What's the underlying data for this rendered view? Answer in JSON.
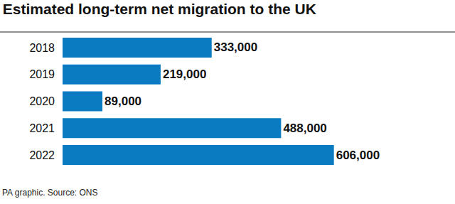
{
  "chart_data": {
    "type": "bar",
    "orientation": "horizontal",
    "title": "Estimated long-term net migration to the UK",
    "annotations": [
      "PA graphic. Source: ONS"
    ],
    "categories": [
      "2018",
      "2019",
      "2020",
      "2021",
      "2022"
    ],
    "values": [
      333000,
      219000,
      89000,
      488000,
      606000
    ],
    "value_labels": [
      "333,000",
      "219,000",
      "89,000",
      "488,000",
      "606,000"
    ],
    "color": "#0b7bc1",
    "data_labels": true,
    "tick_labels": "y",
    "grid": false
  }
}
